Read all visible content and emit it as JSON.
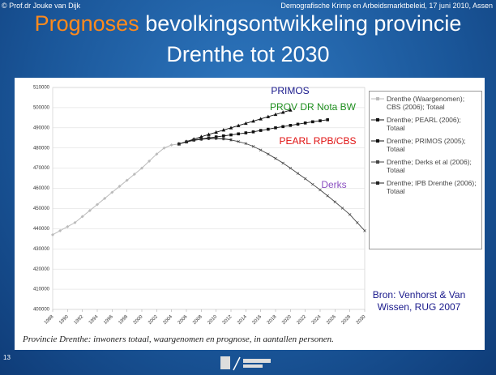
{
  "slide": {
    "author": "© Prof.dr Jouke van Dijk",
    "event": "Demografische Krimp en Arbeidsmarktbeleid, 17 juni 2010, Assen",
    "title_highlight": "Prognoses",
    "title_rest": "bevolkingsontwikkeling provincie",
    "title_line2": "Drenthe tot 2030",
    "caption": "Provincie Drenthe: inwoners totaal, waargenomen en prognose, in aantallen personen.",
    "page_number": "13"
  },
  "chart_data": {
    "type": "line",
    "x": [
      1988,
      1989,
      1990,
      1991,
      1992,
      1993,
      1994,
      1995,
      1996,
      1997,
      1998,
      1999,
      2000,
      2001,
      2002,
      2003,
      2004,
      2005,
      2006,
      2007,
      2008,
      2009,
      2010,
      2011,
      2012,
      2013,
      2014,
      2015,
      2016,
      2017,
      2018,
      2019,
      2020,
      2021,
      2022,
      2023,
      2024,
      2025,
      2026,
      2027,
      2028,
      2029,
      2030
    ],
    "xlim": [
      1988,
      2030
    ],
    "xticks": [
      1988,
      1990,
      1992,
      1994,
      1996,
      1998,
      2000,
      2002,
      2004,
      2006,
      2008,
      2010,
      2012,
      2014,
      2016,
      2018,
      2020,
      2022,
      2024,
      2026,
      2028,
      2030
    ],
    "ylim": [
      400000,
      510000
    ],
    "yticks": [
      400000,
      410000,
      420000,
      430000,
      440000,
      450000,
      460000,
      470000,
      480000,
      490000,
      500000,
      510000
    ],
    "grid": true,
    "legend": "right",
    "series": [
      {
        "name": "Drenthe (Waargenomen); CBS (2006); Totaal",
        "color": "#bbbbbb",
        "marker": "diamond",
        "values": [
          437000,
          439000,
          441000,
          443000,
          446000,
          449000,
          452000,
          455000,
          458000,
          461000,
          464000,
          467000,
          470000,
          473500,
          477000,
          480000,
          481500,
          482000,
          null,
          null,
          null,
          null,
          null,
          null,
          null,
          null,
          null,
          null,
          null,
          null,
          null,
          null,
          null,
          null,
          null,
          null,
          null,
          null,
          null,
          null,
          null,
          null,
          null
        ]
      },
      {
        "name": "Drenthe; PEARL (2006); Totaal",
        "color": "#111111",
        "marker": "square",
        "values": [
          null,
          null,
          null,
          null,
          null,
          null,
          null,
          null,
          null,
          null,
          null,
          null,
          null,
          null,
          null,
          null,
          null,
          482000,
          483000,
          484000,
          484500,
          485000,
          485500,
          486000,
          486500,
          487000,
          487500,
          488000,
          488700,
          489300,
          490000,
          490600,
          491200,
          491800,
          492400,
          493000,
          493500,
          494000,
          null,
          null,
          null,
          null,
          null
        ]
      },
      {
        "name": "Drenthe; PRIMOS (2005); Totaal",
        "color": "#111111",
        "marker": "triangle",
        "values": [
          null,
          null,
          null,
          null,
          null,
          null,
          null,
          null,
          null,
          null,
          null,
          null,
          null,
          null,
          null,
          null,
          null,
          482000,
          483200,
          484400,
          485600,
          486700,
          487800,
          488900,
          490000,
          491100,
          492200,
          493300,
          494400,
          495500,
          496600,
          497700,
          498800,
          null,
          null,
          null,
          null,
          null,
          null,
          null,
          null,
          null,
          null
        ]
      },
      {
        "name": "Drenthe; Derks et al (2006); Totaal",
        "color": "#444444",
        "marker": "cross",
        "values": [
          null,
          null,
          null,
          null,
          null,
          null,
          null,
          null,
          null,
          null,
          null,
          null,
          null,
          null,
          null,
          null,
          null,
          482000,
          483000,
          483800,
          484300,
          484600,
          484700,
          484500,
          484000,
          483200,
          482200,
          480800,
          479000,
          477000,
          474800,
          472500,
          470000,
          467400,
          464800,
          462000,
          459200,
          456300,
          453300,
          450200,
          447000,
          443000,
          439000
        ]
      },
      {
        "name": "Drenthe; IPB Drenthe (2006); Totaal",
        "color": "#222222",
        "marker": "bar",
        "values": [
          null,
          null,
          null,
          null,
          null,
          null,
          null,
          null,
          null,
          null,
          null,
          null,
          null,
          null,
          null,
          null,
          null,
          482000,
          483100,
          483900,
          484400,
          484700,
          484800,
          484600,
          484100,
          null,
          null,
          null,
          null,
          null,
          null,
          null,
          null,
          null,
          null,
          null,
          null,
          null,
          null,
          null,
          null,
          null,
          null
        ]
      }
    ],
    "annotations": [
      {
        "text": "PRIMOS",
        "color": "#1a1a8c"
      },
      {
        "text": "PROV DR Nota BW",
        "color": "#1f8f1f"
      },
      {
        "text": "PEARL RPB/CBS",
        "color": "#e01010"
      },
      {
        "text": "Derks",
        "color": "#8a4fc0"
      }
    ],
    "source": [
      "Bron: Venhorst & Van",
      "Wissen, RUG 2007"
    ],
    "source_color": "#1a1a8c"
  }
}
